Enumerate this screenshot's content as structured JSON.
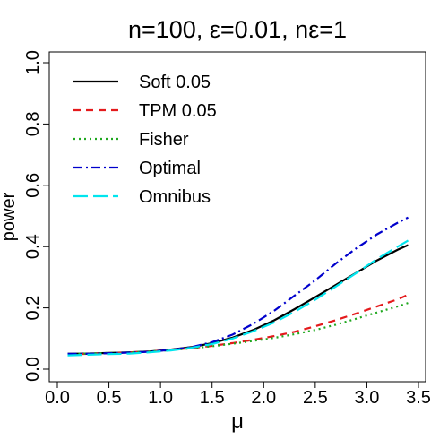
{
  "chart_data": {
    "type": "line",
    "title": "n=100, ε=0.01, nε=1",
    "xlabel": "μ",
    "ylabel": "power",
    "xlim": [
      0.0,
      3.5
    ],
    "ylim": [
      0.0,
      1.0
    ],
    "x_ticks": [
      "0.0",
      "0.5",
      "1.0",
      "1.5",
      "2.0",
      "2.5",
      "3.0",
      "3.5"
    ],
    "y_ticks": [
      "0.0",
      "0.2",
      "0.4",
      "0.6",
      "0.8",
      "1.0"
    ],
    "grid": false,
    "legend_position": "top-left",
    "series": [
      {
        "name": "Soft 0.05",
        "color": "#000000",
        "style": "solid",
        "x": [
          0.1,
          0.3,
          0.5,
          0.7,
          0.9,
          1.1,
          1.3,
          1.5,
          1.7,
          1.9,
          2.1,
          2.3,
          2.5,
          2.7,
          2.9,
          3.1,
          3.3,
          3.4
        ],
        "y": [
          0.05,
          0.051,
          0.053,
          0.055,
          0.058,
          0.064,
          0.072,
          0.085,
          0.103,
          0.128,
          0.159,
          0.196,
          0.235,
          0.275,
          0.315,
          0.355,
          0.39,
          0.405
        ]
      },
      {
        "name": "TPM 0.05",
        "color": "#e41a1c",
        "style": "dashed",
        "x": [
          0.1,
          0.3,
          0.5,
          0.7,
          0.9,
          1.1,
          1.3,
          1.5,
          1.7,
          1.9,
          2.1,
          2.3,
          2.5,
          2.7,
          2.9,
          3.1,
          3.3,
          3.4
        ],
        "y": [
          0.048,
          0.05,
          0.052,
          0.055,
          0.058,
          0.063,
          0.069,
          0.076,
          0.085,
          0.096,
          0.108,
          0.122,
          0.14,
          0.16,
          0.182,
          0.205,
          0.228,
          0.243
        ]
      },
      {
        "name": "Fisher",
        "color": "#1fa81f",
        "style": "dotted",
        "x": [
          0.1,
          0.3,
          0.5,
          0.7,
          0.9,
          1.1,
          1.3,
          1.5,
          1.7,
          1.9,
          2.1,
          2.3,
          2.5,
          2.7,
          2.9,
          3.1,
          3.3,
          3.4
        ],
        "y": [
          0.05,
          0.051,
          0.053,
          0.055,
          0.058,
          0.062,
          0.068,
          0.075,
          0.083,
          0.092,
          0.102,
          0.114,
          0.128,
          0.145,
          0.165,
          0.185,
          0.205,
          0.216
        ]
      },
      {
        "name": "Optimal",
        "color": "#0000cc",
        "style": "dashdot",
        "x": [
          0.1,
          0.3,
          0.5,
          0.7,
          0.9,
          1.1,
          1.3,
          1.5,
          1.7,
          1.9,
          2.1,
          2.3,
          2.5,
          2.7,
          2.9,
          3.1,
          3.3,
          3.4
        ],
        "y": [
          0.05,
          0.05,
          0.052,
          0.054,
          0.057,
          0.063,
          0.072,
          0.088,
          0.113,
          0.148,
          0.19,
          0.24,
          0.29,
          0.345,
          0.395,
          0.44,
          0.478,
          0.495
        ]
      },
      {
        "name": "Omnibus",
        "color": "#00e5ee",
        "style": "longdash",
        "x": [
          0.1,
          0.3,
          0.5,
          0.7,
          0.9,
          1.1,
          1.3,
          1.5,
          1.7,
          1.9,
          2.1,
          2.3,
          2.5,
          2.7,
          2.9,
          3.1,
          3.3,
          3.4
        ],
        "y": [
          0.045,
          0.047,
          0.049,
          0.051,
          0.055,
          0.061,
          0.07,
          0.082,
          0.1,
          0.124,
          0.152,
          0.187,
          0.227,
          0.27,
          0.314,
          0.36,
          0.4,
          0.42
        ]
      }
    ]
  }
}
